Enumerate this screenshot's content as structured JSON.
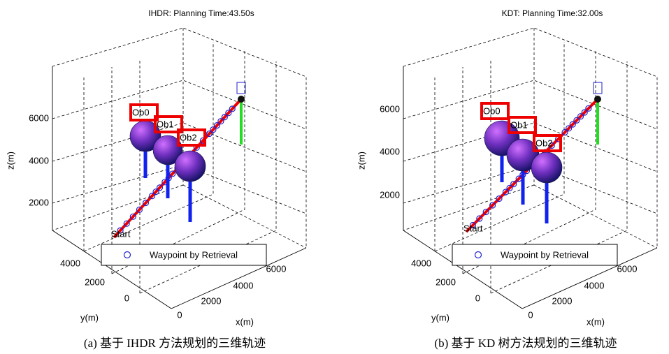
{
  "panels": [
    {
      "title": "IHDR: Planning Time:43.50s",
      "z_label": "z(m)",
      "y_label": "y(m)",
      "x_label": "x(m)",
      "z_ticks": [
        6000,
        4000,
        2000
      ],
      "y_ticks": [
        4000,
        2000,
        0
      ],
      "x_ticks": [
        0,
        2000,
        4000,
        6000
      ],
      "obstacles": [
        "Ob0",
        "Ob1",
        "Ob2"
      ],
      "start_label": "Start",
      "legend": "Waypoint by Retrieval",
      "caption": "(a) 基于 IHDR 方法规划的三维轨迹"
    },
    {
      "title": "KDT: Planning Time:32.00s",
      "z_label": "z(m)",
      "y_label": "y(m)",
      "x_label": "x(m)",
      "z_ticks": [
        6000,
        4000,
        2000
      ],
      "y_ticks": [
        4000,
        2000,
        0
      ],
      "x_ticks": [
        0,
        2000,
        4000,
        6000
      ],
      "obstacles": [
        "Ob0",
        "Ob1",
        "Ob2"
      ],
      "start_label": "Start",
      "legend": "Waypoint by Retrieval",
      "caption": "(b) 基于 KD 树方法规划的三维轨迹"
    }
  ]
}
